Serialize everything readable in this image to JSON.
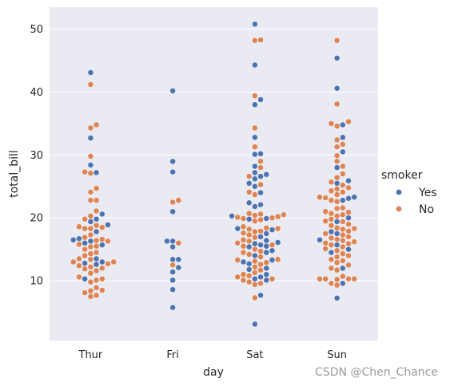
{
  "chart_data": {
    "type": "scatter",
    "style": "swarm",
    "xlabel": "day",
    "ylabel": "total_bill",
    "categories": [
      "Thur",
      "Fri",
      "Sat",
      "Sun"
    ],
    "ylim": [
      0.5,
      53.5
    ],
    "yticks": [
      10,
      20,
      30,
      40,
      50
    ],
    "grid": true,
    "background": "#EAEAF2",
    "legend": {
      "title": "smoker",
      "position": "right",
      "entries": [
        "Yes",
        "No"
      ]
    },
    "series": [
      {
        "name": "Yes",
        "color": "#4C72B0",
        "points": {
          "Thur": [
            43.1,
            32.7,
            28.4,
            27.2,
            20.6,
            19.8,
            19.4,
            18.9,
            17.8,
            16.7,
            16.5,
            16.3,
            16.0,
            15.7,
            13.5,
            13.0,
            12.8,
            12.6,
            10.3
          ],
          "Fri": [
            40.2,
            28.97,
            27.3,
            21.0,
            16.3,
            16.3,
            15.4,
            13.4,
            13.4,
            12.1,
            11.4,
            10.1,
            8.6,
            5.75
          ],
          "Sat": [
            50.8,
            44.3,
            38.8,
            38.0,
            32.8,
            30.2,
            30.1,
            28.2,
            27.2,
            26.9,
            26.6,
            26.2,
            25.5,
            25.0,
            24.0,
            22.4,
            22.1,
            21.8,
            20.3,
            19.9,
            19.8,
            18.3,
            18.1,
            17.5,
            17.0,
            16.4,
            16.1,
            15.9,
            15.7,
            15.5,
            15.4,
            14.8,
            14.5,
            14.0,
            13.3,
            13.0,
            12.7,
            12.0,
            11.8,
            11.0,
            10.6,
            10.3,
            10.1,
            7.7,
            3.1
          ],
          "Sun": [
            45.4,
            40.6,
            34.8,
            32.8,
            30.5,
            28.0,
            25.9,
            25.5,
            23.3,
            23.1,
            22.8,
            20.0,
            19.4,
            17.8,
            17.5,
            16.5,
            15.7,
            15.0,
            14.5,
            12.0,
            9.6,
            7.25
          ]
        }
      },
      {
        "name": "No",
        "color": "#DD8452",
        "points": {
          "Thur": [
            41.2,
            34.8,
            34.3,
            29.8,
            27.3,
            27.1,
            24.7,
            24.1,
            22.8,
            22.8,
            21.1,
            20.3,
            19.8,
            18.8,
            18.6,
            18.5,
            18.3,
            18.3,
            17.3,
            16.9,
            16.6,
            16.4,
            16.3,
            15.8,
            15.5,
            15.4,
            15.0,
            14.5,
            14.3,
            14.0,
            13.5,
            13.4,
            13.0,
            13.0,
            12.7,
            12.4,
            12.2,
            12.0,
            11.9,
            11.6,
            11.2,
            10.6,
            10.3,
            10.1,
            9.8,
            8.9,
            8.5,
            8.4,
            8.1,
            7.7,
            7.5
          ],
          "Fri": [
            22.8,
            22.5,
            16.0,
            12.5
          ],
          "Sat": [
            48.3,
            48.2,
            39.4,
            34.3,
            31.3,
            29.0,
            28.0,
            26.6,
            25.3,
            24.1,
            23.7,
            20.7,
            20.6,
            20.5,
            20.4,
            20.2,
            20.1,
            20.0,
            19.9,
            19.7,
            19.5,
            18.6,
            18.4,
            18.3,
            18.2,
            17.9,
            17.8,
            17.6,
            17.3,
            16.9,
            16.5,
            16.3,
            16.0,
            15.7,
            15.5,
            15.0,
            14.7,
            14.5,
            14.2,
            13.8,
            13.4,
            13.3,
            13.1,
            12.9,
            12.6,
            12.2,
            11.7,
            11.3,
            11.0,
            10.8,
            10.6,
            10.3,
            10.1,
            9.8,
            9.6,
            9.4,
            7.3
          ],
          "Sun": [
            48.2,
            38.1,
            35.3,
            35.0,
            34.6,
            32.4,
            31.7,
            31.3,
            29.9,
            29.0,
            28.2,
            27.0,
            26.4,
            25.7,
            25.2,
            24.8,
            24.6,
            24.3,
            24.1,
            23.7,
            23.3,
            23.2,
            22.8,
            22.6,
            21.6,
            21.5,
            21.0,
            20.9,
            20.7,
            20.5,
            20.3,
            19.8,
            19.5,
            19.4,
            19.0,
            18.8,
            18.4,
            18.3,
            18.2,
            17.9,
            17.5,
            17.3,
            17.0,
            16.8,
            16.6,
            16.4,
            16.2,
            16.0,
            15.9,
            15.7,
            15.4,
            15.1,
            14.8,
            14.3,
            14.0,
            13.8,
            13.4,
            13.2,
            12.9,
            12.5,
            12.0,
            11.7,
            10.7,
            10.3,
            10.3,
            10.3,
            10.3,
            10.2,
            9.6,
            9.3
          ]
        }
      }
    ]
  },
  "watermark": "CSDN @Chen_Chance"
}
